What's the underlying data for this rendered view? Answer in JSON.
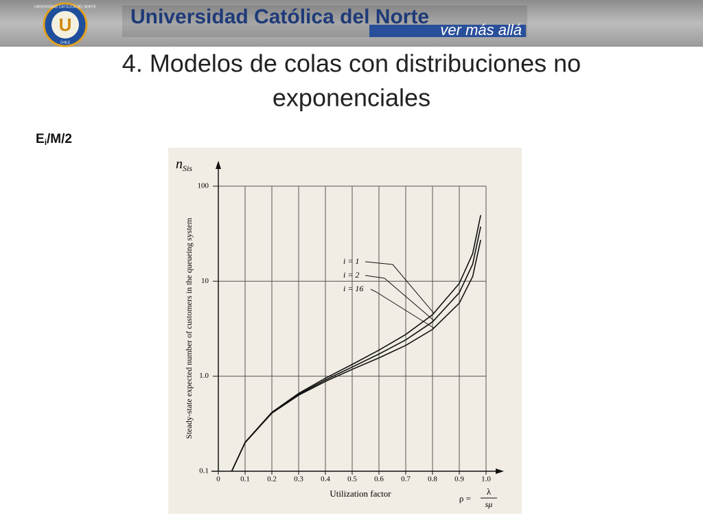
{
  "slide": {
    "university": "Universidad Católica del Norte",
    "motto": "ver más allá",
    "logo_letter": "U",
    "logo_ring": "UNIVERSIDAD CATÓLICA DEL NORTE",
    "logo_country": "CHILE",
    "title_line1": "4. Modelos de colas con distribuciones no",
    "title_line2": "exponenciales",
    "model": {
      "base": "E",
      "sub": "i",
      "rest": "/M/2"
    }
  },
  "chart_data": {
    "type": "line",
    "yscale": "log",
    "grid": true,
    "y_symbol": {
      "base": "n",
      "sub": "Sis"
    },
    "y_label": "Steady-state expected number of customers in the queueing system",
    "x_label": "Utilization factor",
    "x_symbol": {
      "lhs": "ρ =",
      "num": "λ",
      "den": "sμ"
    },
    "xlim": [
      0,
      1
    ],
    "ylim": [
      0.1,
      100
    ],
    "xticks": [
      0,
      0.1,
      0.2,
      0.3,
      0.4,
      0.5,
      0.6,
      0.7,
      0.8,
      0.9,
      {
        "value": 1,
        "label": "1.0"
      }
    ],
    "yticks": [
      0.1,
      {
        "value": 1,
        "label": "1.0"
      },
      10,
      100
    ],
    "x": [
      0.05,
      0.1,
      0.2,
      0.3,
      0.4,
      0.5,
      0.6,
      0.7,
      0.8,
      0.9,
      0.95,
      0.98
    ],
    "series": [
      {
        "name": "i = 1",
        "color": "#111111",
        "values": [
          0.1,
          0.202,
          0.417,
          0.659,
          0.952,
          1.33,
          1.88,
          2.75,
          4.44,
          9.47,
          19.5,
          49.5
        ]
      },
      {
        "name": "i = 2",
        "color": "#111111",
        "values": [
          0.1,
          0.2,
          0.413,
          0.644,
          0.914,
          1.25,
          1.71,
          2.41,
          3.73,
          7.56,
          15.1,
          37.6
        ]
      },
      {
        "name": "i = 16",
        "color": "#111111",
        "values": [
          0.1,
          0.2,
          0.409,
          0.631,
          0.881,
          1.18,
          1.56,
          2.11,
          3.11,
          5.87,
          11.2,
          27.2
        ]
      }
    ]
  }
}
